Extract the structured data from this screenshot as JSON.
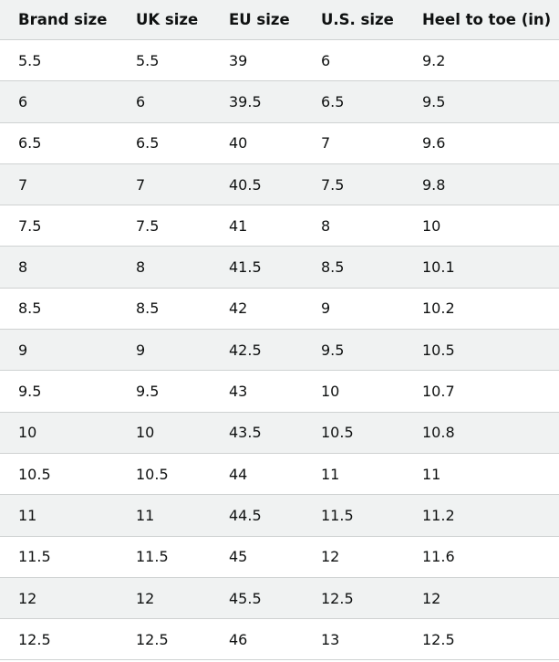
{
  "size_chart": {
    "headers": [
      "Brand size",
      "UK size",
      "EU size",
      "U.S. size",
      "Heel to toe (in)"
    ],
    "rows": [
      [
        "5.5",
        "5.5",
        "39",
        "6",
        "9.2"
      ],
      [
        "6",
        "6",
        "39.5",
        "6.5",
        "9.5"
      ],
      [
        "6.5",
        "6.5",
        "40",
        "7",
        "9.6"
      ],
      [
        "7",
        "7",
        "40.5",
        "7.5",
        "9.8"
      ],
      [
        "7.5",
        "7.5",
        "41",
        "8",
        "10"
      ],
      [
        "8",
        "8",
        "41.5",
        "8.5",
        "10.1"
      ],
      [
        "8.5",
        "8.5",
        "42",
        "9",
        "10.2"
      ],
      [
        "9",
        "9",
        "42.5",
        "9.5",
        "10.5"
      ],
      [
        "9.5",
        "9.5",
        "43",
        "10",
        "10.7"
      ],
      [
        "10",
        "10",
        "43.5",
        "10.5",
        "10.8"
      ],
      [
        "10.5",
        "10.5",
        "44",
        "11",
        "11"
      ],
      [
        "11",
        "11",
        "44.5",
        "11.5",
        "11.2"
      ],
      [
        "11.5",
        "11.5",
        "45",
        "12",
        "11.6"
      ],
      [
        "12",
        "12",
        "45.5",
        "12.5",
        "12"
      ],
      [
        "12.5",
        "12.5",
        "46",
        "13",
        "12.5"
      ]
    ]
  }
}
